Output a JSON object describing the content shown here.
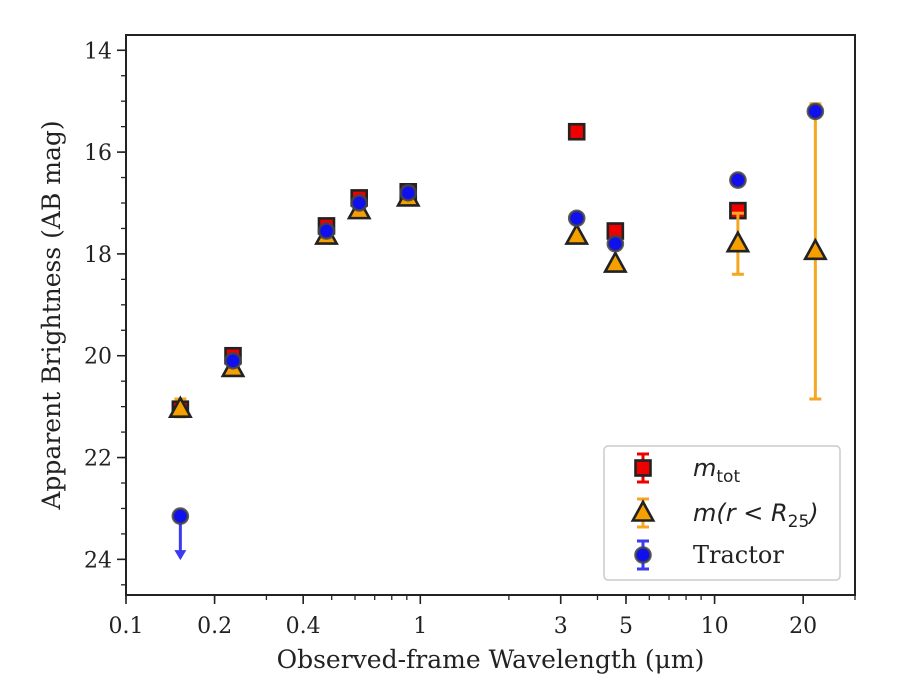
{
  "chart_data": {
    "type": "scatter",
    "xlabel": "Observed-frame Wavelength (μm)",
    "ylabel": "Apparent Brightness (AB mag)",
    "xscale": "log",
    "xlim": [
      0.1,
      30
    ],
    "ylim": [
      24.7,
      13.7
    ],
    "y_inverted": true,
    "x_ticks": [
      {
        "value": 0.1,
        "label": "0.1"
      },
      {
        "value": 0.2,
        "label": "0.2"
      },
      {
        "value": 0.4,
        "label": "0.4"
      },
      {
        "value": 1,
        "label": "1"
      },
      {
        "value": 3,
        "label": "3"
      },
      {
        "value": 5,
        "label": "5"
      },
      {
        "value": 10,
        "label": "10"
      },
      {
        "value": 20,
        "label": "20"
      }
    ],
    "y_ticks": [
      14,
      16,
      18,
      20,
      22,
      24
    ],
    "legend_position": "lower-right",
    "series": [
      {
        "name": "m_tot",
        "label_main": "m",
        "label_sub": "tot",
        "marker": "square",
        "color": "#ee0000",
        "errcolor": "#ee0000",
        "points": [
          {
            "x": 0.153,
            "y": 21.05
          },
          {
            "x": 0.231,
            "y": 20.0
          },
          {
            "x": 0.48,
            "y": 17.45
          },
          {
            "x": 0.62,
            "y": 16.9
          },
          {
            "x": 0.91,
            "y": 16.78
          },
          {
            "x": 3.4,
            "y": 15.6
          },
          {
            "x": 4.6,
            "y": 17.55
          },
          {
            "x": 12.0,
            "y": 17.15
          }
        ]
      },
      {
        "name": "m(r < R25)",
        "label_main": "m(r < R",
        "label_sub": "25",
        "label_end": ")",
        "marker": "triangle",
        "color": "#f5a000",
        "errcolor": "#f5a623",
        "points": [
          {
            "x": 0.153,
            "y": 21.05,
            "yerr_low": 20.85,
            "yerr_high": 21.2
          },
          {
            "x": 0.231,
            "y": 20.25
          },
          {
            "x": 0.48,
            "y": 17.65
          },
          {
            "x": 0.62,
            "y": 17.15
          },
          {
            "x": 0.91,
            "y": 16.9
          },
          {
            "x": 3.4,
            "y": 17.65
          },
          {
            "x": 4.6,
            "y": 18.2
          },
          {
            "x": 12.0,
            "y": 17.8,
            "yerr_low": 17.2,
            "yerr_high": 18.4
          },
          {
            "x": 22.0,
            "y": 17.95,
            "yerr_low": 15.05,
            "yerr_high": 20.85
          }
        ]
      },
      {
        "name": "Tractor",
        "label_main": "Tractor",
        "marker": "circle",
        "color": "#1010ee",
        "errcolor": "#3a3aee",
        "points": [
          {
            "x": 0.153,
            "y": 23.15,
            "upper_limit": true
          },
          {
            "x": 0.231,
            "y": 20.1
          },
          {
            "x": 0.48,
            "y": 17.55
          },
          {
            "x": 0.62,
            "y": 17.0
          },
          {
            "x": 0.91,
            "y": 16.8
          },
          {
            "x": 3.4,
            "y": 17.3
          },
          {
            "x": 4.6,
            "y": 17.8
          },
          {
            "x": 12.0,
            "y": 16.55
          },
          {
            "x": 22.0,
            "y": 15.2
          }
        ]
      }
    ]
  }
}
